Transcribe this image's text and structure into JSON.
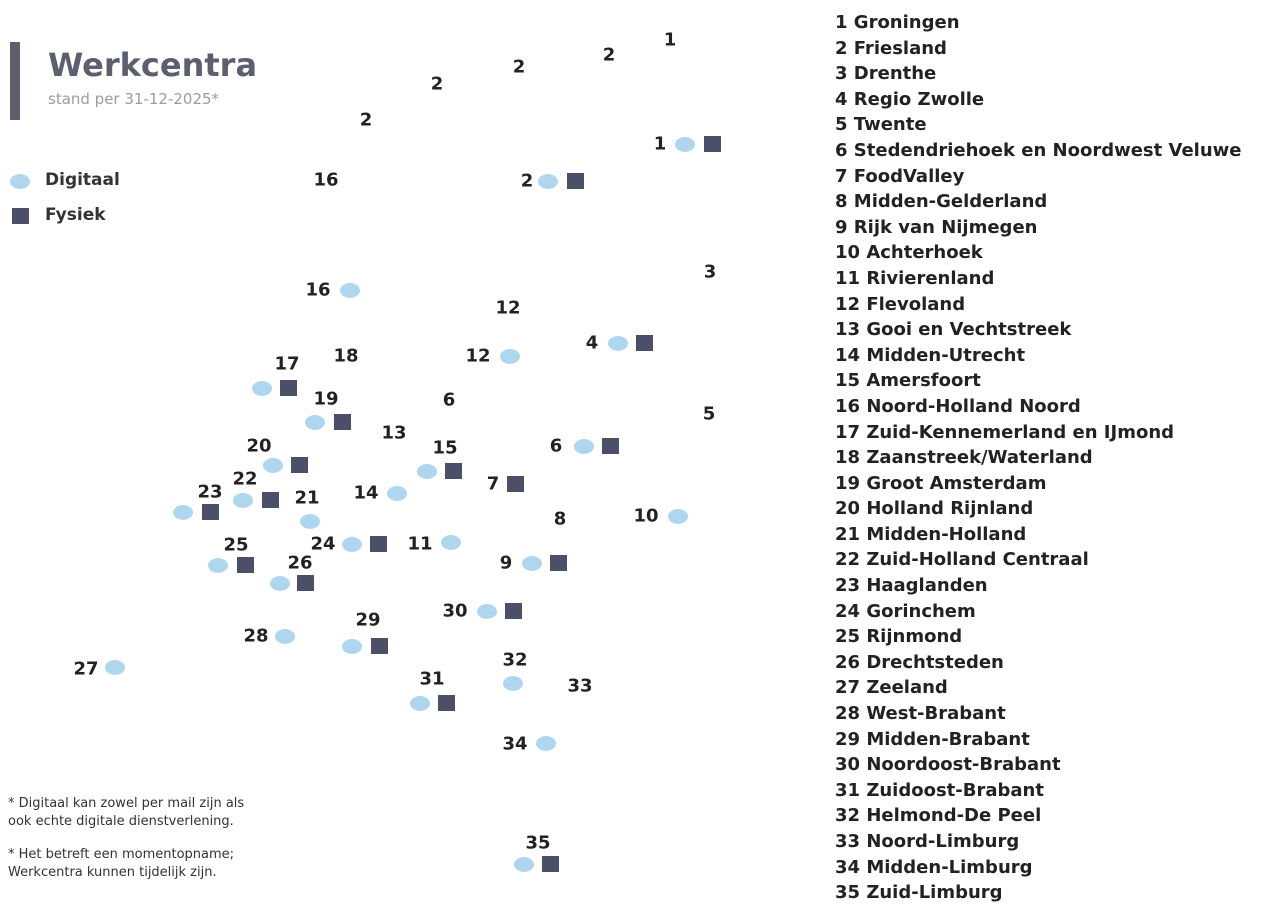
{
  "header": {
    "title": "Werkcentra",
    "subtitle": "stand per 31-12-2025*"
  },
  "legend": {
    "digital": "Digitaal",
    "physical": "Fysiek"
  },
  "notes": [
    "* Digitaal kan zowel per mail zijn als",
    "ook echte digitale dienstverlening.",
    "* Het betreft een momentopname;",
    "Werkcentra kunnen tijdelijk zijn."
  ],
  "map_labels": [
    {
      "label": "1",
      "digital": false,
      "physical": false
    },
    {
      "label": "2",
      "digital": false,
      "physical": false
    },
    {
      "label": "2",
      "digital": false,
      "physical": false
    },
    {
      "label": "2",
      "digital": false,
      "physical": false
    },
    {
      "label": "2",
      "digital": false,
      "physical": false
    },
    {
      "label": "16",
      "digital": false,
      "physical": false
    },
    {
      "label": "1",
      "digital": true,
      "physical": true
    },
    {
      "label": "2",
      "digital": true,
      "physical": true
    },
    {
      "label": "3",
      "digital": false,
      "physical": false
    },
    {
      "label": "16",
      "digital": true,
      "physical": false
    },
    {
      "label": "12",
      "digital": false,
      "physical": false
    },
    {
      "label": "12",
      "digital": true,
      "physical": false
    },
    {
      "label": "4",
      "digital": true,
      "physical": true
    },
    {
      "label": "17",
      "digital": true,
      "physical": true
    },
    {
      "label": "18",
      "digital": false,
      "physical": false
    },
    {
      "label": "19",
      "digital": true,
      "physical": true
    },
    {
      "label": "6",
      "digital": false,
      "physical": false
    },
    {
      "label": "5",
      "digital": false,
      "physical": false
    },
    {
      "label": "13",
      "digital": false,
      "physical": false
    },
    {
      "label": "15",
      "digital": true,
      "physical": true
    },
    {
      "label": "6",
      "digital": true,
      "physical": true
    },
    {
      "label": "20",
      "digital": true,
      "physical": true
    },
    {
      "label": "22",
      "digital": true,
      "physical": true
    },
    {
      "label": "21",
      "digital": true,
      "physical": false
    },
    {
      "label": "23",
      "digital": true,
      "physical": true
    },
    {
      "label": "14",
      "digital": true,
      "physical": false
    },
    {
      "label": "7",
      "digital": false,
      "physical": true
    },
    {
      "label": "8",
      "digital": false,
      "physical": false
    },
    {
      "label": "10",
      "digital": true,
      "physical": false
    },
    {
      "label": "24",
      "digital": true,
      "physical": true
    },
    {
      "label": "11",
      "digital": true,
      "physical": false
    },
    {
      "label": "9",
      "digital": true,
      "physical": true
    },
    {
      "label": "25",
      "digital": true,
      "physical": true
    },
    {
      "label": "26",
      "digital": true,
      "physical": true
    },
    {
      "label": "30",
      "digital": true,
      "physical": true
    },
    {
      "label": "29",
      "digital": true,
      "physical": true
    },
    {
      "label": "28",
      "digital": true,
      "physical": false
    },
    {
      "label": "27",
      "digital": true,
      "physical": false
    },
    {
      "label": "32",
      "digital": true,
      "physical": false
    },
    {
      "label": "33",
      "digital": false,
      "physical": false
    },
    {
      "label": "31",
      "digital": true,
      "physical": true
    },
    {
      "label": "34",
      "digital": true,
      "physical": false
    },
    {
      "label": "35",
      "digital": true,
      "physical": true
    }
  ],
  "regions": [
    "1 Groningen",
    "2 Friesland",
    "3 Drenthe",
    "4 Regio Zwolle",
    "5 Twente",
    "6 Stedendriehoek en Noordwest Veluwe",
    "7 FoodValley",
    "8 Midden-Gelderland",
    "9 Rijk van Nijmegen",
    "10 Achterhoek",
    "11 Rivierenland",
    "12 Flevoland",
    "13 Gooi en Vechtstreek",
    "14 Midden-Utrecht",
    "15 Amersfoort",
    "16 Noord-Holland Noord",
    "17 Zuid-Kennemerland en IJmond",
    "18 Zaanstreek/Waterland",
    "19 Groot Amsterdam",
    "20 Holland Rijnland",
    "21 Midden-Holland",
    "22 Zuid-Holland Centraal",
    "23 Haaglanden",
    "24 Gorinchem",
    "25 Rijnmond",
    "26 Drechtsteden",
    "27 Zeeland",
    "28 West-Brabant",
    "29 Midden-Brabant",
    "30 Noordoost-Brabant",
    "31 Zuidoost-Brabant",
    "32 Helmond-De Peel",
    "33 Noord-Limburg",
    "34 Midden-Limburg",
    "35 Zuid-Limburg"
  ]
}
